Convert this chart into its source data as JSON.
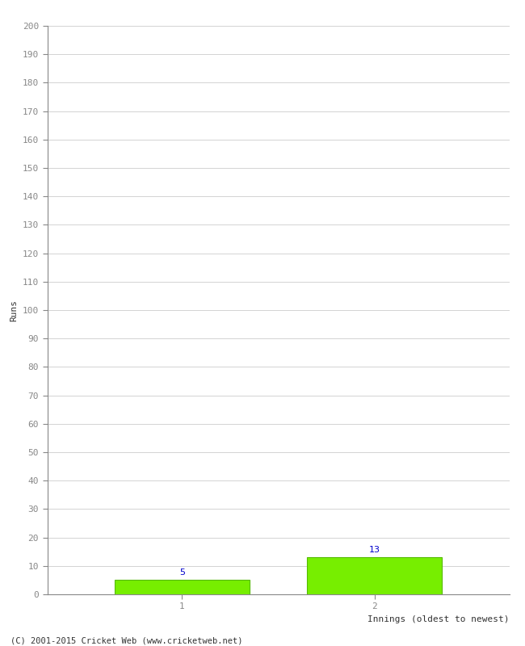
{
  "xlabel": "Innings (oldest to newest)",
  "ylabel": "Runs",
  "categories": [
    1,
    2
  ],
  "values": [
    5,
    13
  ],
  "bar_color": "#77ee00",
  "bar_edgecolor": "#55bb00",
  "label_color": "#0000cc",
  "ylim": [
    0,
    200
  ],
  "ytick_step": 10,
  "background_color": "#ffffff",
  "grid_color": "#cccccc",
  "footer": "(C) 2001-2015 Cricket Web (www.cricketweb.net)",
  "tick_color": "#888888",
  "spine_color": "#888888"
}
